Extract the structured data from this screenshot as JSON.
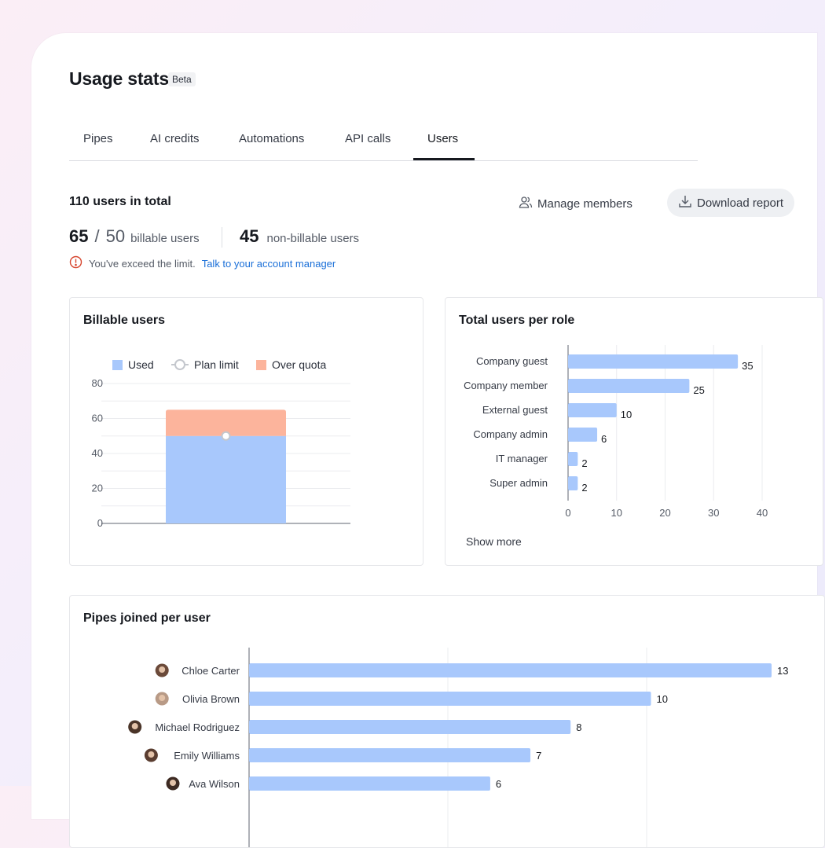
{
  "page": {
    "title": "Usage stats",
    "badge": "Beta"
  },
  "tabs": [
    {
      "label": "Pipes"
    },
    {
      "label": "AI credits"
    },
    {
      "label": "Automations"
    },
    {
      "label": "API calls"
    },
    {
      "label": "Users",
      "active": true
    }
  ],
  "summary": {
    "total_users": "110 users in total",
    "billable_used": "65",
    "billable_separator": "/",
    "billable_limit": "50",
    "billable_label": "billable users",
    "non_billable_count": "45",
    "non_billable_label": "non-billable users",
    "warning_text": "You've exceed the limit.",
    "warning_link": "Talk to your account manager",
    "warning_icon": "alert-circle-icon"
  },
  "actions": {
    "manage_members": "Manage members",
    "manage_icon": "users-icon",
    "download_report": "Download report",
    "download_icon": "download-icon"
  },
  "colors": {
    "used": "#a8c8fc",
    "over_quota": "#fcb49c",
    "plan_limit": "#c4c7cd",
    "link": "#1a6fd8",
    "warning": "#d6452e",
    "bar": "#a8c8fc"
  },
  "panels": {
    "billable_title": "Billable users",
    "roles_title": "Total users per role",
    "roles_show_more": "Show more",
    "pipes_title": "Pipes joined per user"
  },
  "chart_data": [
    {
      "type": "bar",
      "stacked": true,
      "legend": [
        "Used",
        "Plan limit",
        "Over quota"
      ],
      "series": [
        {
          "name": "Used",
          "values": [
            50
          ]
        },
        {
          "name": "Over quota",
          "values": [
            15
          ]
        }
      ],
      "plan_limit": 50,
      "ylim": [
        0,
        80
      ],
      "yticks": [
        0,
        20,
        40,
        60,
        80
      ],
      "grid": true,
      "legend_position": "top"
    },
    {
      "type": "bar",
      "orientation": "horizontal",
      "categories": [
        "Company guest",
        "Company member",
        "External guest",
        "Company admin",
        "IT manager",
        "Super admin"
      ],
      "values": [
        35,
        25,
        10,
        6,
        2,
        2
      ],
      "xlim": [
        0,
        40
      ],
      "xticks": [
        0,
        10,
        20,
        30,
        40
      ],
      "grid": true
    },
    {
      "type": "bar",
      "orientation": "horizontal",
      "categories": [
        "Chloe Carter",
        "Olivia Brown",
        "Michael Rodriguez",
        "Emily Williams",
        "Ava Wilson"
      ],
      "values": [
        13,
        10,
        8,
        7,
        6
      ],
      "value_labels": [
        "13",
        "10",
        "8",
        "7",
        "6"
      ],
      "xlim": [
        0,
        13
      ],
      "grid": true
    }
  ]
}
